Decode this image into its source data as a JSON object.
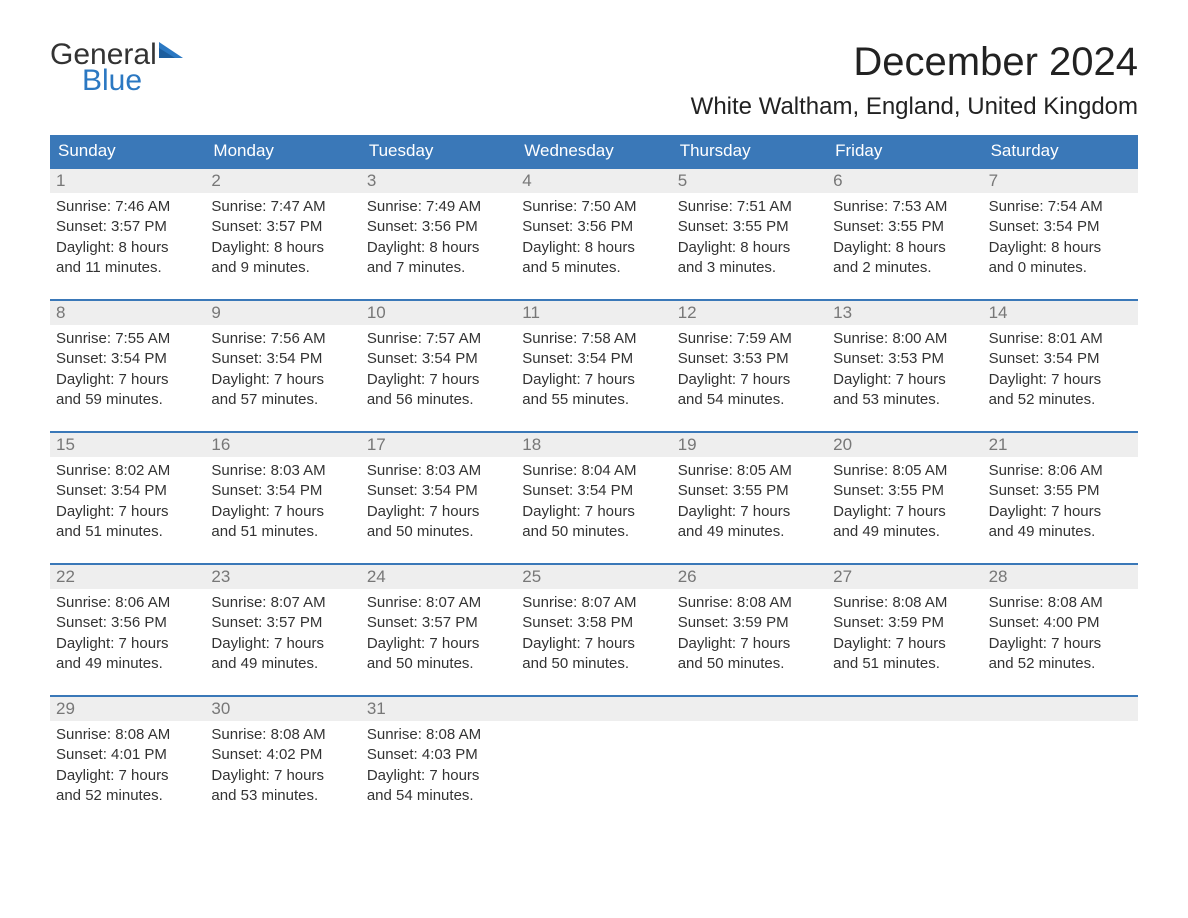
{
  "brand": {
    "line1": "General",
    "line2": "Blue",
    "color_dark": "#333333",
    "color_blue": "#2b78c2"
  },
  "title": "December 2024",
  "location": "White Waltham, England, United Kingdom",
  "colors": {
    "header_bg": "#3a78b8",
    "header_text": "#ffffff",
    "week_border": "#3a78b8",
    "daynum_bg": "#eeeeee",
    "daynum_text": "#777777",
    "body_text": "#333333",
    "page_bg": "#ffffff"
  },
  "fonts": {
    "title_size": 40,
    "location_size": 24,
    "dow_size": 17,
    "daynum_size": 17,
    "body_size": 15
  },
  "days_of_week": [
    "Sunday",
    "Monday",
    "Tuesday",
    "Wednesday",
    "Thursday",
    "Friday",
    "Saturday"
  ],
  "weeks": [
    [
      {
        "n": "1",
        "sunrise": "7:46 AM",
        "sunset": "3:57 PM",
        "dlh": "8",
        "dlm": "11"
      },
      {
        "n": "2",
        "sunrise": "7:47 AM",
        "sunset": "3:57 PM",
        "dlh": "8",
        "dlm": "9"
      },
      {
        "n": "3",
        "sunrise": "7:49 AM",
        "sunset": "3:56 PM",
        "dlh": "8",
        "dlm": "7"
      },
      {
        "n": "4",
        "sunrise": "7:50 AM",
        "sunset": "3:56 PM",
        "dlh": "8",
        "dlm": "5"
      },
      {
        "n": "5",
        "sunrise": "7:51 AM",
        "sunset": "3:55 PM",
        "dlh": "8",
        "dlm": "3"
      },
      {
        "n": "6",
        "sunrise": "7:53 AM",
        "sunset": "3:55 PM",
        "dlh": "8",
        "dlm": "2"
      },
      {
        "n": "7",
        "sunrise": "7:54 AM",
        "sunset": "3:54 PM",
        "dlh": "8",
        "dlm": "0"
      }
    ],
    [
      {
        "n": "8",
        "sunrise": "7:55 AM",
        "sunset": "3:54 PM",
        "dlh": "7",
        "dlm": "59"
      },
      {
        "n": "9",
        "sunrise": "7:56 AM",
        "sunset": "3:54 PM",
        "dlh": "7",
        "dlm": "57"
      },
      {
        "n": "10",
        "sunrise": "7:57 AM",
        "sunset": "3:54 PM",
        "dlh": "7",
        "dlm": "56"
      },
      {
        "n": "11",
        "sunrise": "7:58 AM",
        "sunset": "3:54 PM",
        "dlh": "7",
        "dlm": "55"
      },
      {
        "n": "12",
        "sunrise": "7:59 AM",
        "sunset": "3:53 PM",
        "dlh": "7",
        "dlm": "54"
      },
      {
        "n": "13",
        "sunrise": "8:00 AM",
        "sunset": "3:53 PM",
        "dlh": "7",
        "dlm": "53"
      },
      {
        "n": "14",
        "sunrise": "8:01 AM",
        "sunset": "3:54 PM",
        "dlh": "7",
        "dlm": "52"
      }
    ],
    [
      {
        "n": "15",
        "sunrise": "8:02 AM",
        "sunset": "3:54 PM",
        "dlh": "7",
        "dlm": "51"
      },
      {
        "n": "16",
        "sunrise": "8:03 AM",
        "sunset": "3:54 PM",
        "dlh": "7",
        "dlm": "51"
      },
      {
        "n": "17",
        "sunrise": "8:03 AM",
        "sunset": "3:54 PM",
        "dlh": "7",
        "dlm": "50"
      },
      {
        "n": "18",
        "sunrise": "8:04 AM",
        "sunset": "3:54 PM",
        "dlh": "7",
        "dlm": "50"
      },
      {
        "n": "19",
        "sunrise": "8:05 AM",
        "sunset": "3:55 PM",
        "dlh": "7",
        "dlm": "49"
      },
      {
        "n": "20",
        "sunrise": "8:05 AM",
        "sunset": "3:55 PM",
        "dlh": "7",
        "dlm": "49"
      },
      {
        "n": "21",
        "sunrise": "8:06 AM",
        "sunset": "3:55 PM",
        "dlh": "7",
        "dlm": "49"
      }
    ],
    [
      {
        "n": "22",
        "sunrise": "8:06 AM",
        "sunset": "3:56 PM",
        "dlh": "7",
        "dlm": "49"
      },
      {
        "n": "23",
        "sunrise": "8:07 AM",
        "sunset": "3:57 PM",
        "dlh": "7",
        "dlm": "49"
      },
      {
        "n": "24",
        "sunrise": "8:07 AM",
        "sunset": "3:57 PM",
        "dlh": "7",
        "dlm": "50"
      },
      {
        "n": "25",
        "sunrise": "8:07 AM",
        "sunset": "3:58 PM",
        "dlh": "7",
        "dlm": "50"
      },
      {
        "n": "26",
        "sunrise": "8:08 AM",
        "sunset": "3:59 PM",
        "dlh": "7",
        "dlm": "50"
      },
      {
        "n": "27",
        "sunrise": "8:08 AM",
        "sunset": "3:59 PM",
        "dlh": "7",
        "dlm": "51"
      },
      {
        "n": "28",
        "sunrise": "8:08 AM",
        "sunset": "4:00 PM",
        "dlh": "7",
        "dlm": "52"
      }
    ],
    [
      {
        "n": "29",
        "sunrise": "8:08 AM",
        "sunset": "4:01 PM",
        "dlh": "7",
        "dlm": "52"
      },
      {
        "n": "30",
        "sunrise": "8:08 AM",
        "sunset": "4:02 PM",
        "dlh": "7",
        "dlm": "53"
      },
      {
        "n": "31",
        "sunrise": "8:08 AM",
        "sunset": "4:03 PM",
        "dlh": "7",
        "dlm": "54"
      },
      null,
      null,
      null,
      null
    ]
  ],
  "labels": {
    "sunrise_prefix": "Sunrise: ",
    "sunset_prefix": "Sunset: ",
    "daylight_prefix": "Daylight: ",
    "hours_word": " hours",
    "and_word": "and ",
    "minutes_word": " minutes."
  }
}
